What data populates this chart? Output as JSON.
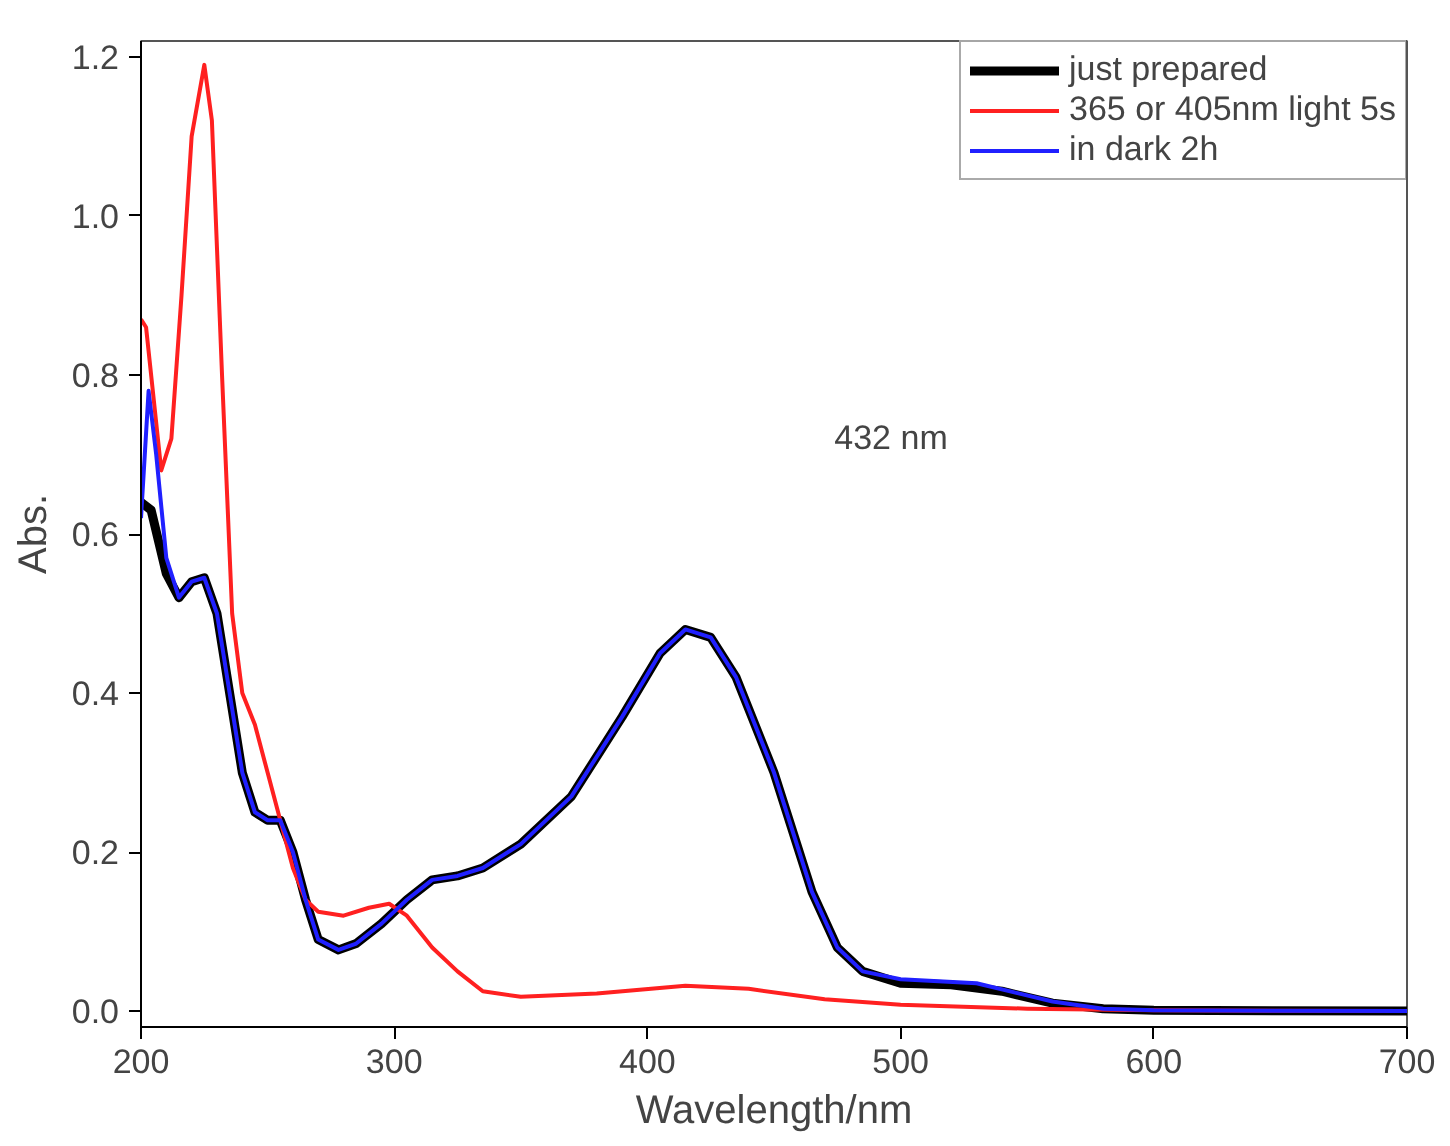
{
  "chart_data": {
    "type": "line",
    "xlabel": "Wavelength/nm",
    "ylabel": "Abs.",
    "xlim": [
      200,
      700
    ],
    "ylim": [
      -0.02,
      1.22
    ],
    "xticks": [
      200,
      300,
      400,
      500,
      600,
      700
    ],
    "yticks": [
      {
        "value": 0,
        "label": "0.0"
      },
      0.2,
      0.4,
      0.6,
      0.8,
      {
        "value": 1,
        "label": "1.0"
      },
      1.2
    ],
    "grid": false,
    "legend": "top right",
    "marker": "none",
    "line_style": "solid",
    "annotations": [
      "432 nm"
    ],
    "series": [
      {
        "name": "just prepared",
        "color": "#000000",
        "x": [
          200,
          204,
          210,
          215,
          220,
          225,
          230,
          235,
          240,
          245,
          250,
          255,
          260,
          265,
          270,
          278,
          285,
          295,
          305,
          315,
          325,
          335,
          350,
          370,
          390,
          405,
          415,
          425,
          435,
          450,
          465,
          475,
          485,
          500,
          520,
          540,
          560,
          580,
          600,
          700
        ],
        "values": [
          0.64,
          0.63,
          0.55,
          0.52,
          0.54,
          0.545,
          0.5,
          0.4,
          0.3,
          0.25,
          0.24,
          0.24,
          0.2,
          0.14,
          0.09,
          0.077,
          0.085,
          0.11,
          0.14,
          0.165,
          0.17,
          0.18,
          0.21,
          0.27,
          0.37,
          0.45,
          0.48,
          0.47,
          0.42,
          0.3,
          0.15,
          0.08,
          0.05,
          0.035,
          0.033,
          0.025,
          0.01,
          0.003,
          0.001,
          0
        ]
      },
      {
        "name": "365 or 405nm light 5s",
        "color": "#ff2020",
        "x": [
          200,
          202,
          204,
          208,
          212,
          216,
          220,
          225,
          228,
          232,
          236,
          240,
          245,
          250,
          255,
          260,
          265,
          270,
          280,
          290,
          298,
          305,
          315,
          325,
          335,
          350,
          380,
          415,
          440,
          470,
          500,
          550,
          600,
          700
        ],
        "values": [
          0.87,
          0.86,
          0.8,
          0.68,
          0.72,
          0.9,
          1.1,
          1.19,
          1.12,
          0.8,
          0.5,
          0.4,
          0.36,
          0.3,
          0.24,
          0.18,
          0.14,
          0.125,
          0.12,
          0.13,
          0.135,
          0.12,
          0.08,
          0.05,
          0.025,
          0.018,
          0.022,
          0.032,
          0.028,
          0.015,
          0.008,
          0.003,
          0.001,
          0
        ]
      },
      {
        "name": "in dark 2h",
        "color": "#2020ff",
        "x": [
          200,
          203,
          206,
          210,
          215,
          220,
          225,
          230,
          235,
          240,
          245,
          250,
          255,
          260,
          265,
          270,
          278,
          285,
          295,
          305,
          315,
          325,
          335,
          350,
          370,
          390,
          405,
          415,
          425,
          435,
          450,
          465,
          475,
          485,
          500,
          530,
          560,
          580,
          600,
          700
        ],
        "values": [
          0.62,
          0.78,
          0.7,
          0.57,
          0.52,
          0.54,
          0.545,
          0.5,
          0.4,
          0.3,
          0.25,
          0.24,
          0.24,
          0.2,
          0.14,
          0.09,
          0.077,
          0.085,
          0.11,
          0.14,
          0.165,
          0.17,
          0.18,
          0.21,
          0.27,
          0.37,
          0.45,
          0.48,
          0.47,
          0.42,
          0.3,
          0.15,
          0.08,
          0.05,
          0.04,
          0.035,
          0.012,
          0.003,
          0.001,
          0
        ]
      }
    ]
  }
}
